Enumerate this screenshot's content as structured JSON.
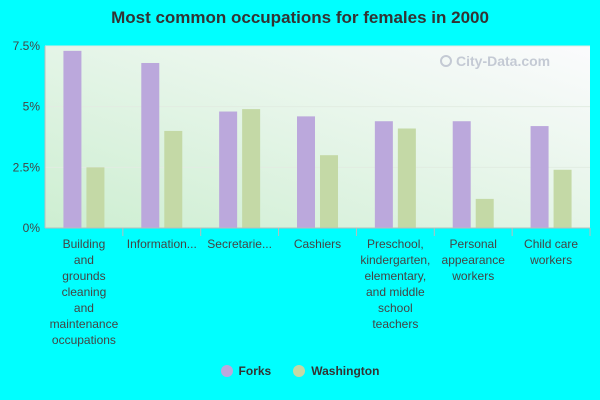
{
  "chart_data": {
    "type": "bar",
    "title": "Most common occupations for females in 2000",
    "categories": [
      "Building and grounds cleaning and maintenance occupations",
      "Information...",
      "Secretarie...",
      "Cashiers",
      "Preschool, kindergarten, elementary, and middle school teachers",
      "Personal appearance workers",
      "Child care workers"
    ],
    "category_lines": [
      [
        "Building",
        "and",
        "grounds",
        "cleaning",
        "and",
        "maintenance",
        "occupations"
      ],
      [
        "Information..."
      ],
      [
        "Secretarie..."
      ],
      [
        "Cashiers"
      ],
      [
        "Preschool,",
        "kindergarten,",
        "elementary,",
        "and middle",
        "school",
        "teachers"
      ],
      [
        "Personal",
        "appearance",
        "workers"
      ],
      [
        "Child care",
        "workers"
      ]
    ],
    "series": [
      {
        "name": "Forks",
        "color": "#bba8dc",
        "values": [
          7.3,
          6.8,
          4.8,
          4.6,
          4.4,
          4.4,
          4.2
        ]
      },
      {
        "name": "Washington",
        "color": "#c4d9a6",
        "values": [
          2.5,
          4.0,
          4.9,
          3.0,
          4.1,
          1.2,
          2.4
        ]
      }
    ],
    "yticks": [
      "0%",
      "2.5%",
      "5%",
      "7.5%"
    ],
    "ytick_values": [
      0,
      2.5,
      5,
      7.5
    ],
    "ylim": [
      0,
      7.5
    ],
    "grid": true,
    "legend_position": "bottom"
  },
  "watermark": {
    "text": "City-Data.com",
    "icon": "magnifier-icon"
  }
}
